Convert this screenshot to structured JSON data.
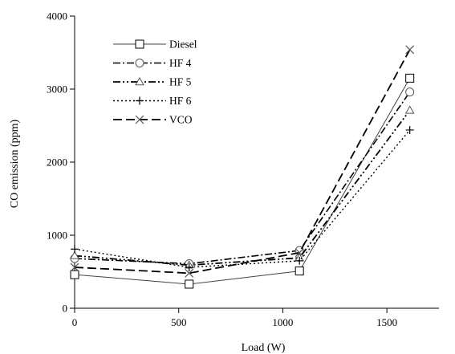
{
  "chart_data": {
    "type": "line",
    "xlabel": "Load (W)",
    "ylabel": "CO emission (ppm)",
    "xlim": [
      0,
      1750
    ],
    "ylim": [
      0,
      4000
    ],
    "x_ticks": [
      "0",
      "500",
      "1000",
      "1500"
    ],
    "y_ticks": [
      "0",
      "1000",
      "2000",
      "3000",
      "4000"
    ],
    "grid": false,
    "legend_position": "top-left",
    "x": [
      0,
      550,
      1080,
      1610
    ],
    "series": [
      {
        "name": "Diesel",
        "values": [
          460,
          330,
          510,
          3150
        ],
        "marker": "square",
        "dash": "solid"
      },
      {
        "name": "HF 4",
        "values": [
          680,
          610,
          790,
          2960
        ],
        "marker": "circle",
        "dash": "dashdot"
      },
      {
        "name": "HF 5",
        "values": [
          720,
          590,
          690,
          2710
        ],
        "marker": "triangle",
        "dash": "dashdotdot"
      },
      {
        "name": "HF 6",
        "values": [
          810,
          560,
          650,
          2440
        ],
        "marker": "plus",
        "dash": "dotted"
      },
      {
        "name": "VCO",
        "values": [
          560,
          480,
          760,
          3540
        ],
        "marker": "cross",
        "dash": "dashed"
      }
    ]
  }
}
